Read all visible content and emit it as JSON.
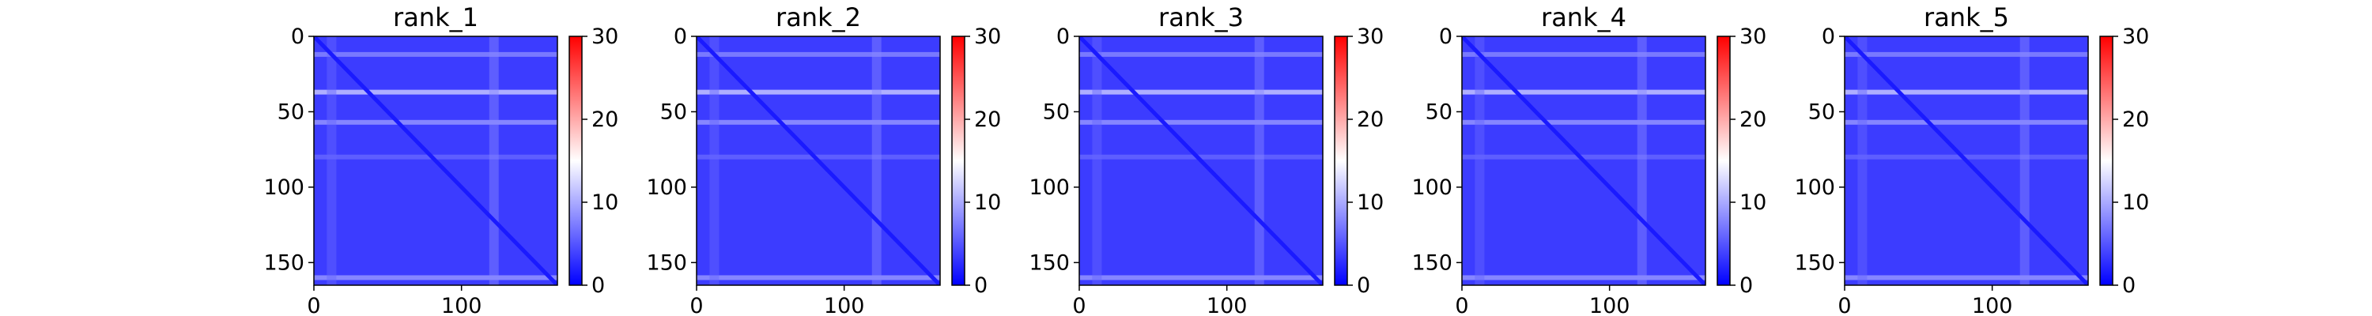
{
  "chart_data": {
    "type": "heatmap",
    "colormap": {
      "name": "bwr",
      "stops": [
        "#0000ff",
        "#ffffff",
        "#ff0000"
      ],
      "vmin": 0,
      "vmax": 30
    },
    "matrix_size": 165,
    "xticks": [
      0,
      100
    ],
    "yticks": [
      0,
      50,
      100,
      150
    ],
    "colorbar_ticks": [
      0,
      10,
      20,
      30
    ],
    "background_value": 3.5,
    "diagonal_value": 1.5,
    "bright_rows": [
      {
        "index": 12,
        "value": 8
      },
      {
        "index": 37,
        "value": 12
      },
      {
        "index": 57,
        "value": 9
      },
      {
        "index": 80,
        "value": 6
      },
      {
        "index": 160,
        "value": 9
      }
    ],
    "bright_columns": [
      {
        "index": 12,
        "value": 6
      },
      {
        "index": 122,
        "value": 8
      }
    ],
    "panels": [
      {
        "title": "rank_1"
      },
      {
        "title": "rank_2"
      },
      {
        "title": "rank_3"
      },
      {
        "title": "rank_4"
      },
      {
        "title": "rank_5"
      }
    ]
  }
}
